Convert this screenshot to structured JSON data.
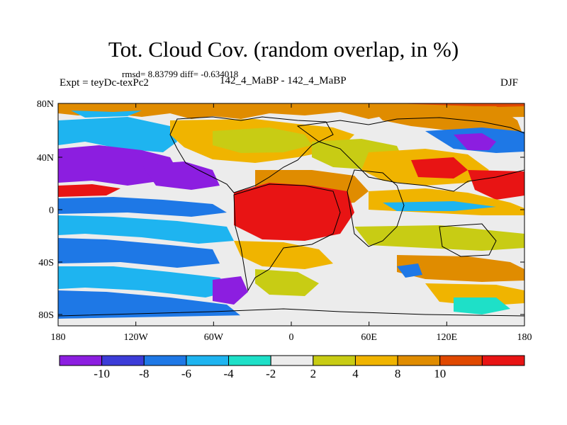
{
  "title": "Tot. Cloud Cov. (random overlap, in %)",
  "stats_line": "rmsd= 8.83799 diff= -0.634018",
  "experiment": "Expt = teyDc-texPc2",
  "period": "142_4_MaBP - 142_4_MaBP",
  "season": "DJF",
  "lat_ticks": [
    "80N",
    "40N",
    "0",
    "40S",
    "80S"
  ],
  "lon_ticks": [
    "180",
    "120W",
    "60W",
    "0",
    "60E",
    "120E",
    "180"
  ],
  "colorbar": {
    "colors": [
      "#8c1ee0",
      "#3c3cd8",
      "#1e78e6",
      "#1eb4f0",
      "#1ee0c8",
      "#ececec",
      "#c8cc14",
      "#f0b400",
      "#e08c00",
      "#e04800",
      "#e81414"
    ],
    "labels": [
      "-10",
      "-8",
      "-6",
      "-4",
      "-2",
      "2",
      "4",
      "8",
      "10"
    ]
  },
  "colors": {
    "background": "#ffffff",
    "neutral": "#ececec",
    "coastline": "#000000"
  }
}
